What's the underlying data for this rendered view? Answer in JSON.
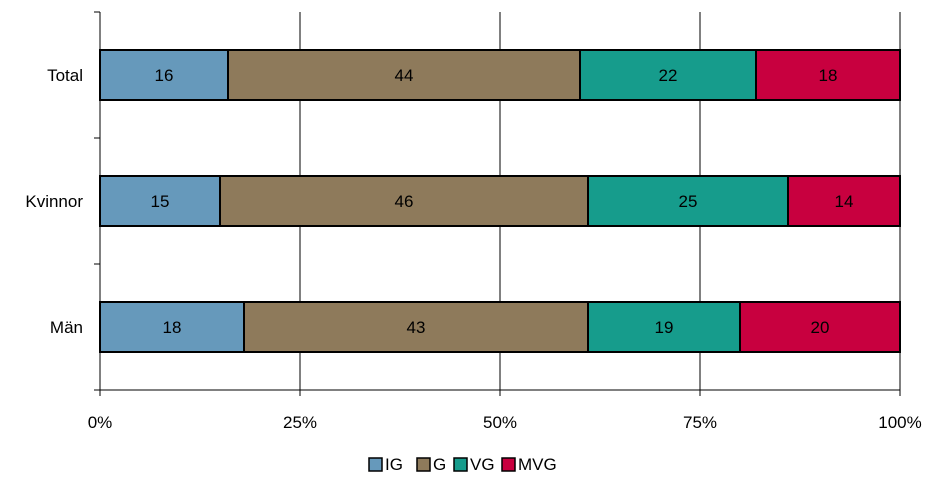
{
  "chart_data": {
    "type": "bar",
    "orientation": "horizontal",
    "stacked": "percent",
    "categories": [
      "Total",
      "Kvinnor",
      "Män"
    ],
    "series": [
      {
        "name": "IG",
        "values": [
          16,
          15,
          18
        ],
        "color": "#6699BB"
      },
      {
        "name": "G",
        "values": [
          44,
          46,
          43
        ],
        "color": "#8E7A5B"
      },
      {
        "name": "VG",
        "values": [
          22,
          25,
          19
        ],
        "color": "#169C8C"
      },
      {
        "name": "MVG",
        "values": [
          18,
          14,
          20
        ],
        "color": "#C8003F"
      }
    ],
    "xticks": [
      "0%",
      "25%",
      "50%",
      "75%",
      "100%"
    ],
    "xlim": [
      0,
      100
    ],
    "grid": true,
    "legend": "bottom",
    "title": "",
    "xlabel": "",
    "ylabel": ""
  }
}
